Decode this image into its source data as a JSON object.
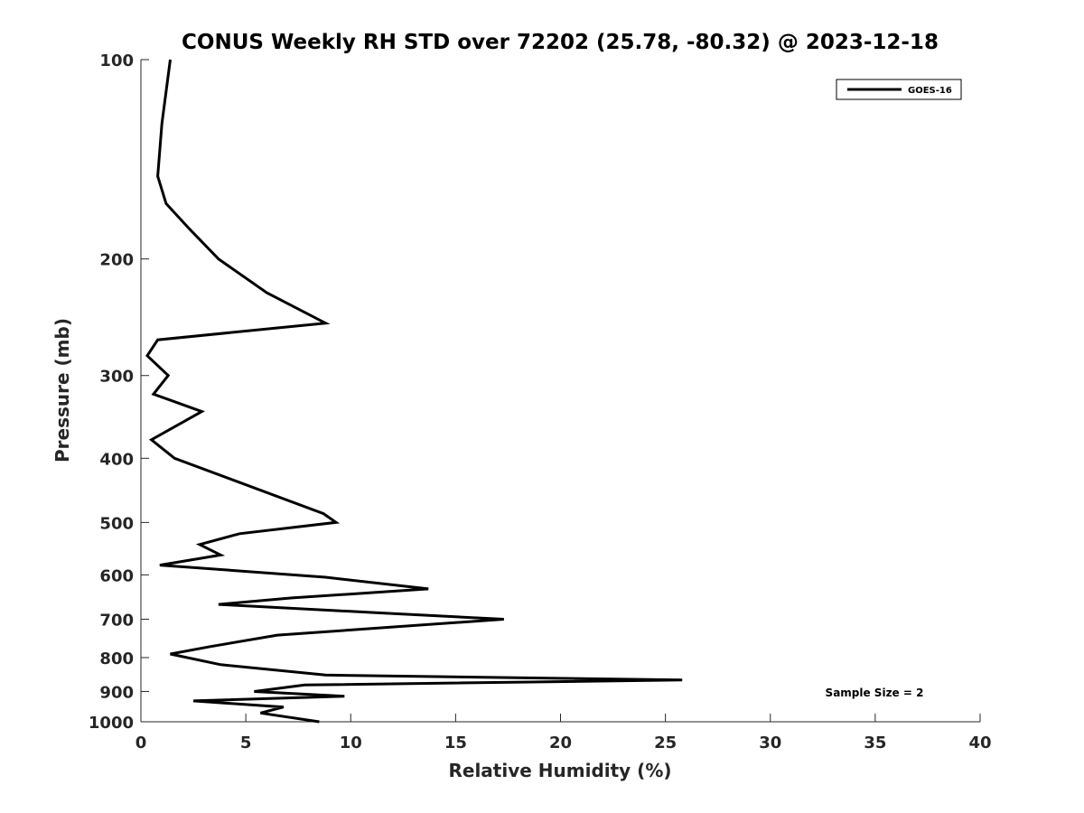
{
  "chart_data": {
    "type": "line",
    "title": "CONUS Weekly RH STD over 72202 (25.78, -80.32) @ 2023-12-18",
    "xlabel": "Relative Humidity (%)",
    "ylabel": "Pressure (mb)",
    "xlim": [
      0,
      40
    ],
    "ylim": [
      100,
      1000
    ],
    "y_scale": "log",
    "y_reversed": true,
    "x_ticks": [
      0,
      5,
      10,
      15,
      20,
      25,
      30,
      35,
      40
    ],
    "x_tick_labels": [
      "0",
      "5",
      "10",
      "15",
      "20",
      "25",
      "30",
      "35",
      "40"
    ],
    "y_ticks": [
      100,
      200,
      300,
      400,
      500,
      600,
      700,
      800,
      900,
      1000
    ],
    "y_tick_labels": [
      "100",
      "200",
      "300",
      "400",
      "500",
      "600",
      "700",
      "800",
      "900",
      "1000"
    ],
    "grid": false,
    "legend_position": "top-right",
    "annotation": "Sample Size = 2",
    "series": [
      {
        "name": "GOES-16",
        "color": "#000000",
        "x": [
          1.4,
          1.0,
          0.8,
          1.2,
          2.3,
          3.7,
          6.0,
          8.8,
          0.8,
          0.3,
          1.3,
          0.6,
          2.9,
          0.5,
          1.6,
          8.7,
          9.3,
          4.7,
          2.8,
          3.8,
          0.9,
          8.8,
          13.7,
          7.2,
          3.7,
          11.5,
          17.3,
          6.5,
          3.3,
          1.4,
          3.8,
          8.8,
          25.8,
          7.8,
          5.4,
          9.7,
          2.5,
          6.8,
          5.7,
          8.5
        ],
        "y": [
          100,
          125,
          150,
          165,
          180,
          200,
          225,
          250,
          265,
          280,
          300,
          320,
          340,
          375,
          400,
          485,
          500,
          520,
          540,
          560,
          580,
          605,
          630,
          650,
          665,
          685,
          700,
          740,
          770,
          790,
          820,
          850,
          865,
          880,
          900,
          915,
          930,
          950,
          970,
          1000
        ]
      }
    ]
  }
}
